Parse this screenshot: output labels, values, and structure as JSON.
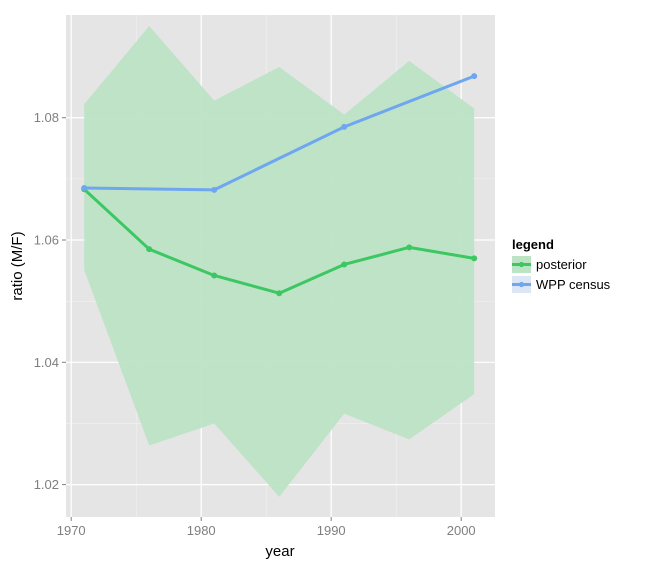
{
  "chart_data": {
    "type": "line",
    "xlabel": "year",
    "ylabel": "ratio (M/F)",
    "xlim": [
      1969.6,
      2002.6
    ],
    "ylim": [
      1.0147,
      1.0968
    ],
    "x_ticks": [
      1970,
      1980,
      1990,
      2000
    ],
    "x_tick_labels": [
      "1970",
      "1980",
      "1990",
      "2000"
    ],
    "y_ticks": [
      1.02,
      1.04,
      1.06,
      1.08
    ],
    "y_tick_labels": [
      "1.02",
      "1.04",
      "1.06",
      "1.08"
    ],
    "grid": true,
    "legend": {
      "title": "legend",
      "position": "right",
      "entries": [
        "posterior",
        "WPP census"
      ]
    },
    "ribbon": {
      "series": "posterior",
      "x": [
        1971,
        1976,
        1981,
        1986,
        1991,
        1996,
        2001
      ],
      "upper": [
        1.0822,
        1.095,
        1.0828,
        1.0883,
        1.0805,
        1.0893,
        1.0815
      ],
      "lower": [
        1.0551,
        1.0264,
        1.03,
        1.018,
        1.0316,
        1.0274,
        1.0348
      ]
    },
    "series": [
      {
        "name": "posterior",
        "color": "#3CC763",
        "x": [
          1971,
          1976,
          1981,
          1986,
          1991,
          1996,
          2001
        ],
        "y": [
          1.0683,
          1.0585,
          1.0542,
          1.0513,
          1.056,
          1.0588,
          1.057
        ]
      },
      {
        "name": "WPP census",
        "color": "#6EA6F0",
        "x": [
          1971,
          1981,
          1991,
          2001
        ],
        "y": [
          1.0685,
          1.0682,
          1.0785,
          1.0868
        ]
      }
    ],
    "colors": {
      "panel_bg": "#E5E5E5",
      "grid_major": "#FFFFFF",
      "ribbon_fill": "#BDE3C5"
    }
  }
}
